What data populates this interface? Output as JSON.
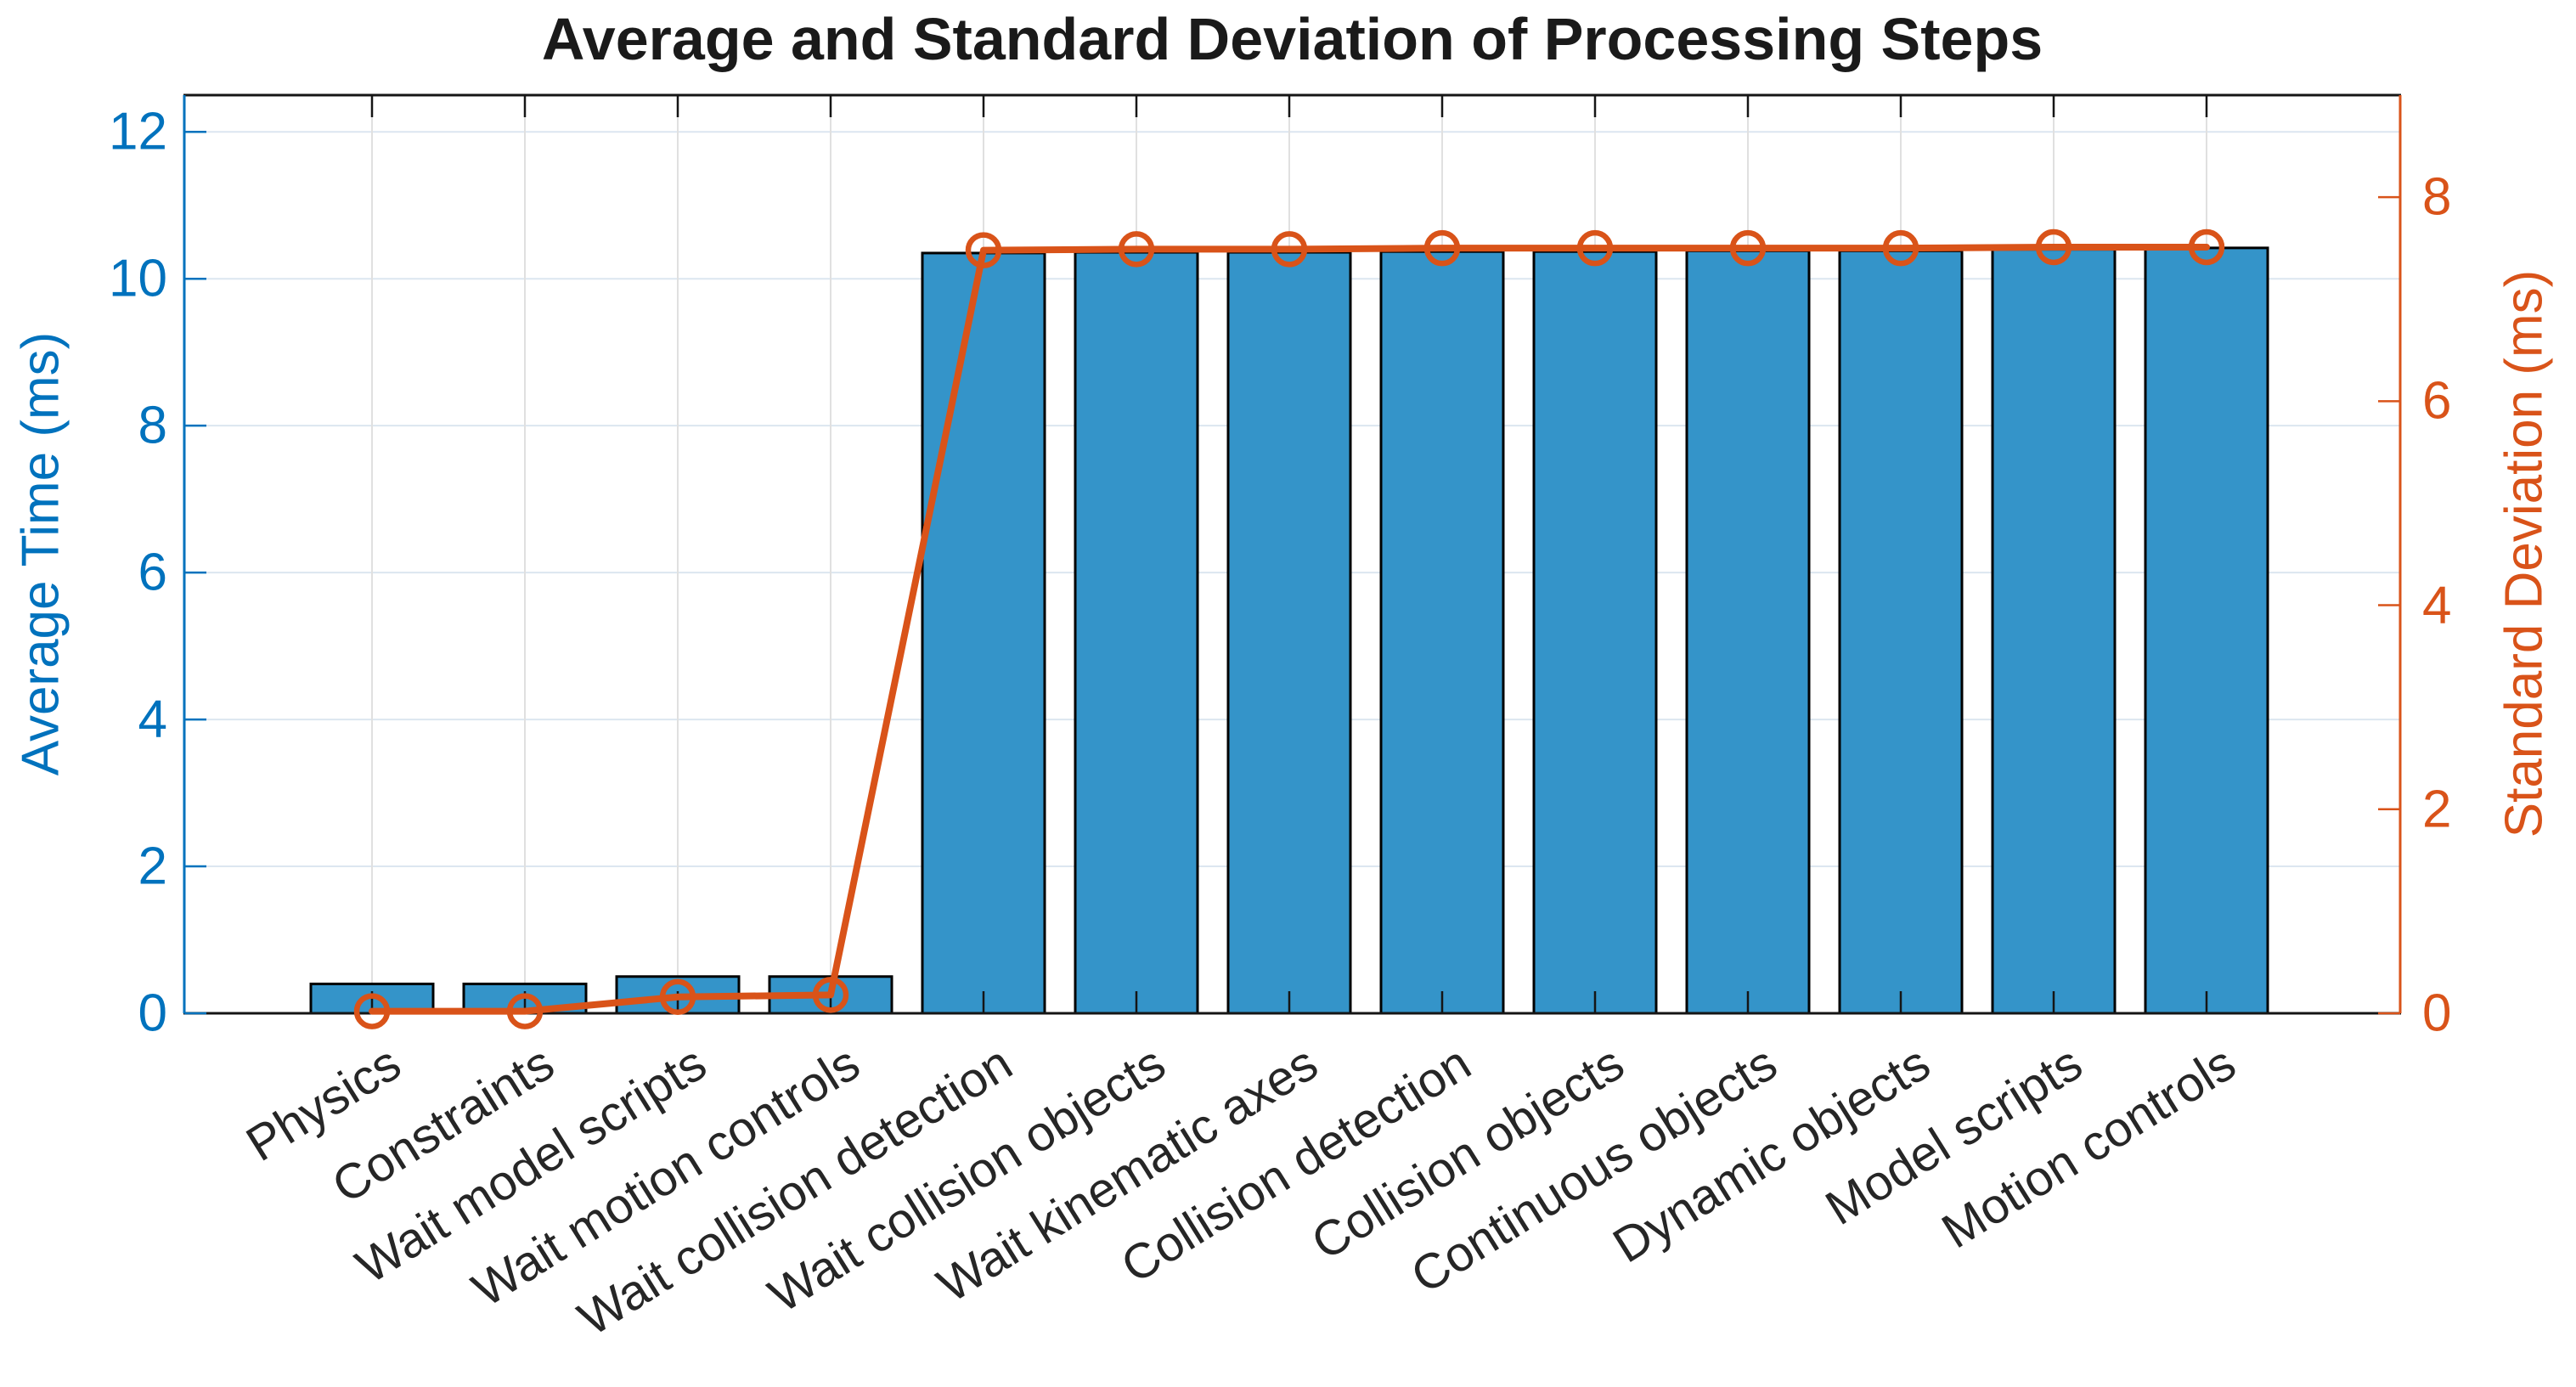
{
  "chart_data": {
    "type": "bar",
    "title": "Average and Standard Deviation of Processing Steps",
    "ylabel_left": "Average Time (ms)",
    "ylabel_right": "Standard Deviation (ms)",
    "categories": [
      "Physics",
      "Constraints",
      "Wait model scripts",
      "Wait motion controls",
      "Wait collision detection",
      "Wait collision objects",
      "Wait kinematic axes",
      "Collision detection",
      "Collision objects",
      "Continuous objects",
      "Dynamic objects",
      "Model scripts",
      "Motion controls"
    ],
    "series": [
      {
        "name": "Average Time",
        "type": "bar",
        "axis": "left",
        "values": [
          0.4,
          0.4,
          0.5,
          0.5,
          10.35,
          10.36,
          10.36,
          10.37,
          10.37,
          10.38,
          10.38,
          10.4,
          10.42
        ]
      },
      {
        "name": "Standard Deviation",
        "type": "line",
        "axis": "right",
        "values": [
          0.02,
          0.02,
          0.16,
          0.18,
          7.48,
          7.49,
          7.49,
          7.5,
          7.5,
          7.5,
          7.5,
          7.51,
          7.51
        ]
      }
    ],
    "yticks_left": [
      0,
      2,
      4,
      6,
      8,
      10,
      12
    ],
    "yticks_right": [
      0,
      2,
      4,
      6,
      8
    ],
    "ylim_left": [
      0,
      12.5
    ],
    "ylim_right": [
      0,
      9
    ],
    "grid": true,
    "legend": "none",
    "colors": {
      "left_axis": "#0072BD",
      "right_axis": "#D95319",
      "bar_fill": "#3494C9",
      "bar_edge": "#000000",
      "line": "#D95319",
      "grid_horizontal": "#dce6f0",
      "grid_vertical": "#e0e0e0",
      "box": "#151515",
      "xtick_label": "#262626"
    }
  }
}
